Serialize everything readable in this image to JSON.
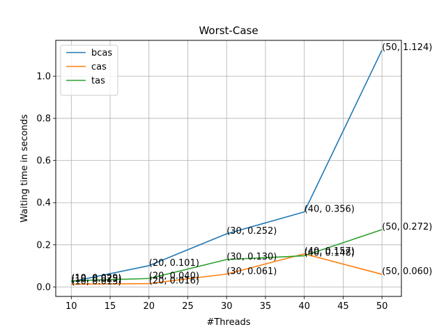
{
  "chart_data": {
    "type": "line",
    "title": "Worst-Case",
    "xlabel": "#Threads",
    "ylabel": "Waiting time in seconds",
    "x": [
      10,
      20,
      30,
      40,
      50
    ],
    "xlim": [
      8,
      52.5
    ],
    "ylim": [
      -0.045,
      1.17
    ],
    "xticks": [
      10,
      15,
      20,
      25,
      30,
      35,
      40,
      45,
      50
    ],
    "yticks": [
      0.0,
      0.2,
      0.4,
      0.6,
      0.8,
      1.0
    ],
    "grid": true,
    "legend_position": "upper-left",
    "series": [
      {
        "name": "bcas",
        "color": "#1f77b4",
        "values": [
          0.025,
          0.101,
          0.252,
          0.356,
          1.124
        ],
        "labels": [
          "(10, 0.025)",
          "(20, 0.101)",
          "(30, 0.252)",
          "(40, 0.356)",
          "(50, 1.124)"
        ]
      },
      {
        "name": "cas",
        "color": "#ff7f0e",
        "values": [
          0.013,
          0.016,
          0.061,
          0.157,
          0.06
        ],
        "labels": [
          "(10, 0.013)",
          "(20, 0.016)",
          "(30, 0.061)",
          "(40, 0.157)",
          "(50, 0.060)"
        ]
      },
      {
        "name": "tas",
        "color": "#2ca02c",
        "values": [
          0.029,
          0.04,
          0.13,
          0.148,
          0.272
        ],
        "labels": [
          "(10, 0.029)",
          "(20, 0.040)",
          "(30, 0.130)",
          "(40, 0.148)",
          "(50, 0.272)"
        ]
      }
    ]
  }
}
